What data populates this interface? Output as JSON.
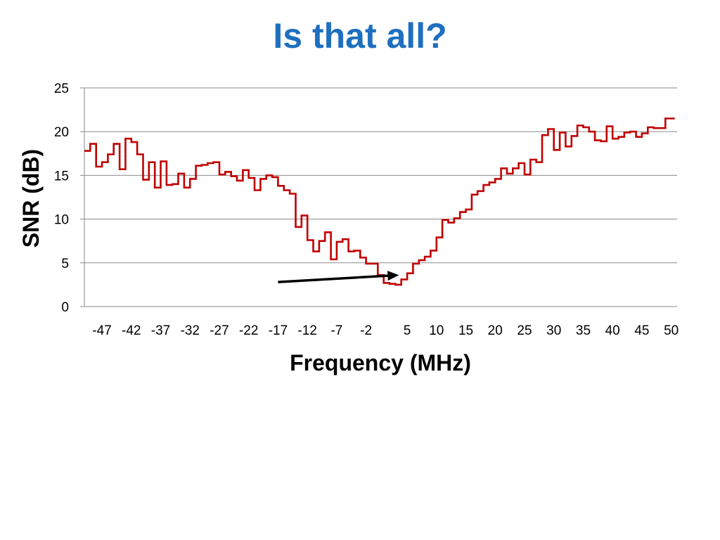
{
  "slide": {
    "title": "Is that all?"
  },
  "chart_data": {
    "type": "line",
    "title": "",
    "xlabel": "Frequency (MHz)",
    "ylabel": "SNR (dB)",
    "ylim": [
      0,
      25
    ],
    "yticks": [
      0,
      5,
      10,
      15,
      20,
      25
    ],
    "xlim": [
      -50,
      51
    ],
    "xticks": [
      "-47",
      "-42",
      "-37",
      "-32",
      "-27",
      "-22",
      "-17",
      "-12",
      "-7",
      "-2",
      "5",
      "10",
      "15",
      "20",
      "25",
      "30",
      "35",
      "40",
      "45",
      "50"
    ],
    "grid": true,
    "series_color": "#c00000",
    "annotation_color": "#000000",
    "annotation": {
      "type": "arrow",
      "from": [
        -17,
        2.8
      ],
      "to": [
        3.6,
        3.6
      ]
    },
    "series": [
      {
        "points": [
          [
            -50,
            17.8
          ],
          [
            -49,
            18.6
          ],
          [
            -48,
            16.0
          ],
          [
            -47,
            16.5
          ],
          [
            -46,
            17.4
          ],
          [
            -45,
            18.6
          ],
          [
            -44,
            15.7
          ],
          [
            -43,
            19.2
          ],
          [
            -42,
            18.8
          ],
          [
            -41,
            17.4
          ],
          [
            -40,
            14.5
          ],
          [
            -39,
            16.5
          ],
          [
            -38,
            13.6
          ],
          [
            -37,
            16.6
          ],
          [
            -36,
            13.9
          ],
          [
            -35,
            14.0
          ],
          [
            -34,
            15.2
          ],
          [
            -33,
            13.6
          ],
          [
            -32,
            14.6
          ],
          [
            -31,
            16.1
          ],
          [
            -30,
            16.2
          ],
          [
            -29,
            16.4
          ],
          [
            -28,
            16.5
          ],
          [
            -27,
            15.1
          ],
          [
            -26,
            15.4
          ],
          [
            -25,
            14.9
          ],
          [
            -24,
            14.4
          ],
          [
            -23,
            15.6
          ],
          [
            -22,
            14.7
          ],
          [
            -21,
            13.3
          ],
          [
            -20,
            14.6
          ],
          [
            -19,
            15.0
          ],
          [
            -18,
            14.8
          ],
          [
            -17,
            13.8
          ],
          [
            -16,
            13.3
          ],
          [
            -15,
            12.9
          ],
          [
            -14,
            9.1
          ],
          [
            -13,
            10.4
          ],
          [
            -12,
            7.6
          ],
          [
            -11,
            6.3
          ],
          [
            -10,
            7.5
          ],
          [
            -9,
            8.5
          ],
          [
            -8,
            5.4
          ],
          [
            -7,
            7.4
          ],
          [
            -6,
            7.7
          ],
          [
            -5,
            6.3
          ],
          [
            -4,
            6.4
          ],
          [
            -3,
            5.6
          ],
          [
            -2,
            4.9
          ],
          [
            -1,
            4.9
          ],
          [
            0,
            3.6
          ],
          [
            1,
            2.7
          ],
          [
            2,
            2.6
          ],
          [
            3,
            2.5
          ],
          [
            4,
            3.1
          ],
          [
            5,
            3.8
          ],
          [
            6,
            4.9
          ],
          [
            7,
            5.3
          ],
          [
            8,
            5.7
          ],
          [
            9,
            6.4
          ],
          [
            10,
            7.9
          ],
          [
            11,
            9.9
          ],
          [
            12,
            9.6
          ],
          [
            13,
            10.1
          ],
          [
            14,
            10.8
          ],
          [
            15,
            11.1
          ],
          [
            16,
            12.8
          ],
          [
            17,
            13.2
          ],
          [
            18,
            13.9
          ],
          [
            19,
            14.2
          ],
          [
            20,
            14.6
          ],
          [
            21,
            15.8
          ],
          [
            22,
            15.2
          ],
          [
            23,
            15.8
          ],
          [
            24,
            16.4
          ],
          [
            25,
            15.1
          ],
          [
            26,
            16.8
          ],
          [
            27,
            16.5
          ],
          [
            28,
            19.6
          ],
          [
            29,
            20.3
          ],
          [
            30,
            17.9
          ],
          [
            31,
            19.9
          ],
          [
            32,
            18.3
          ],
          [
            33,
            19.5
          ],
          [
            34,
            20.7
          ],
          [
            35,
            20.5
          ],
          [
            36,
            20.0
          ],
          [
            37,
            19.0
          ],
          [
            38,
            18.9
          ],
          [
            39,
            20.6
          ],
          [
            40,
            19.2
          ],
          [
            41,
            19.4
          ],
          [
            42,
            19.9
          ],
          [
            43,
            20.0
          ],
          [
            44,
            19.4
          ],
          [
            45,
            19.8
          ],
          [
            46,
            20.5
          ],
          [
            47,
            20.4
          ],
          [
            48,
            20.4
          ],
          [
            49,
            21.5
          ],
          [
            50,
            21.5
          ]
        ]
      }
    ]
  }
}
